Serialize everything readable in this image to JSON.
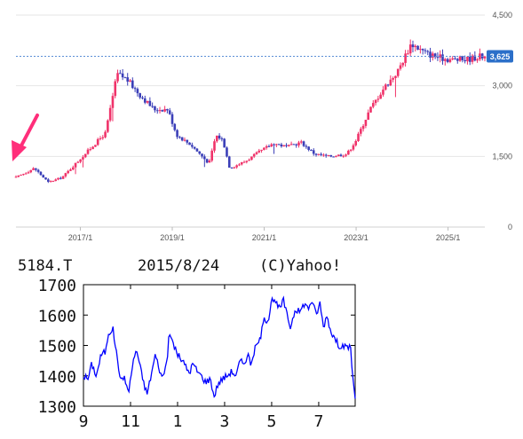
{
  "colors": {
    "up": "#f0336a",
    "down": "#3b3fb8",
    "price_line": "#5b8fd6",
    "price_badge": "#2b6fc9",
    "arrow": "#ff2e7a",
    "line2": "#0000ff"
  },
  "chart_data": [
    {
      "type": "candlestick",
      "ylim": [
        0,
        4500
      ],
      "yticks": [
        "4,500",
        "3,000",
        "1,500",
        "0"
      ],
      "ytick_values": [
        4500,
        3000,
        1500,
        0
      ],
      "xticks": [
        "2017/1",
        "2019/1",
        "2021/1",
        "2023/1",
        "2025/1"
      ],
      "xtick_values": [
        2017.0,
        2019.0,
        2021.0,
        2023.0,
        2025.0
      ],
      "xlim": [
        2015.6,
        2025.8
      ],
      "current_price": 3625,
      "current_price_label": "3,625",
      "annotation": "arrow pointing at 2015 price level",
      "anchors": [
        [
          2015.6,
          1050
        ],
        [
          2016.0,
          1250
        ],
        [
          2016.3,
          950
        ],
        [
          2016.6,
          1050
        ],
        [
          2016.9,
          1350
        ],
        [
          2017.2,
          1650
        ],
        [
          2017.55,
          2000
        ],
        [
          2017.8,
          3250
        ],
        [
          2018.0,
          3150
        ],
        [
          2018.3,
          2800
        ],
        [
          2018.6,
          2500
        ],
        [
          2018.9,
          2500
        ],
        [
          2019.1,
          1950
        ],
        [
          2019.4,
          1750
        ],
        [
          2019.6,
          1550
        ],
        [
          2019.8,
          1350
        ],
        [
          2019.95,
          1950
        ],
        [
          2020.1,
          1850
        ],
        [
          2020.25,
          1250
        ],
        [
          2020.6,
          1400
        ],
        [
          2020.9,
          1600
        ],
        [
          2021.2,
          1780
        ],
        [
          2021.5,
          1700
        ],
        [
          2021.8,
          1800
        ],
        [
          2022.1,
          1550
        ],
        [
          2022.4,
          1500
        ],
        [
          2022.8,
          1550
        ],
        [
          2023.0,
          1850
        ],
        [
          2023.3,
          2500
        ],
        [
          2023.6,
          2950
        ],
        [
          2023.9,
          3300
        ],
        [
          2024.2,
          3900
        ],
        [
          2024.5,
          3700
        ],
        [
          2024.8,
          3600
        ],
        [
          2025.1,
          3550
        ],
        [
          2025.4,
          3560
        ],
        [
          2025.7,
          3625
        ]
      ]
    },
    {
      "type": "line",
      "title_left": "5184.T",
      "title_center": "2015/8/24",
      "title_right": "(C)Yahoo!",
      "ylim": [
        1300,
        1700
      ],
      "yticks": [
        "1700",
        "1600",
        "1500",
        "1400",
        "1300"
      ],
      "ytick_values": [
        1700,
        1600,
        1500,
        1400,
        1300
      ],
      "xticks": [
        "9",
        "11",
        "1",
        "3",
        "5",
        "7"
      ],
      "xtick_values": [
        0,
        2,
        4,
        6,
        8,
        10
      ],
      "xlim": [
        0,
        11.55
      ],
      "anchors": [
        [
          0,
          1400
        ],
        [
          0.2,
          1390
        ],
        [
          0.35,
          1440
        ],
        [
          0.55,
          1400
        ],
        [
          0.75,
          1470
        ],
        [
          0.95,
          1480
        ],
        [
          1.05,
          1540
        ],
        [
          1.25,
          1555
        ],
        [
          1.45,
          1450
        ],
        [
          1.6,
          1380
        ],
        [
          1.75,
          1400
        ],
        [
          1.9,
          1340
        ],
        [
          2.1,
          1440
        ],
        [
          2.25,
          1490
        ],
        [
          2.35,
          1450
        ],
        [
          2.55,
          1380
        ],
        [
          2.7,
          1340
        ],
        [
          2.9,
          1410
        ],
        [
          3.05,
          1470
        ],
        [
          3.2,
          1430
        ],
        [
          3.35,
          1390
        ],
        [
          3.55,
          1450
        ],
        [
          3.65,
          1540
        ],
        [
          3.8,
          1510
        ],
        [
          4.0,
          1470
        ],
        [
          4.2,
          1450
        ],
        [
          4.35,
          1430
        ],
        [
          4.5,
          1410
        ],
        [
          4.65,
          1440
        ],
        [
          4.8,
          1420
        ],
        [
          5.0,
          1400
        ],
        [
          5.2,
          1380
        ],
        [
          5.4,
          1390
        ],
        [
          5.55,
          1330
        ],
        [
          5.7,
          1370
        ],
        [
          5.9,
          1390
        ],
        [
          6.1,
          1400
        ],
        [
          6.3,
          1415
        ],
        [
          6.5,
          1400
        ],
        [
          6.65,
          1450
        ],
        [
          6.8,
          1440
        ],
        [
          7.0,
          1470
        ],
        [
          7.1,
          1440
        ],
        [
          7.3,
          1490
        ],
        [
          7.5,
          1520
        ],
        [
          7.7,
          1590
        ],
        [
          7.85,
          1580
        ],
        [
          8.0,
          1660
        ],
        [
          8.15,
          1640
        ],
        [
          8.35,
          1620
        ],
        [
          8.5,
          1650
        ],
        [
          8.65,
          1600
        ],
        [
          8.8,
          1560
        ],
        [
          9.0,
          1620
        ],
        [
          9.2,
          1610
        ],
        [
          9.4,
          1640
        ],
        [
          9.55,
          1620
        ],
        [
          9.7,
          1650
        ],
        [
          9.9,
          1600
        ],
        [
          10.05,
          1640
        ],
        [
          10.2,
          1560
        ],
        [
          10.35,
          1600
        ],
        [
          10.5,
          1550
        ],
        [
          10.7,
          1520
        ],
        [
          10.85,
          1500
        ],
        [
          11.0,
          1500
        ],
        [
          11.2,
          1490
        ],
        [
          11.35,
          1500
        ],
        [
          11.45,
          1390
        ],
        [
          11.55,
          1330
        ]
      ]
    }
  ]
}
